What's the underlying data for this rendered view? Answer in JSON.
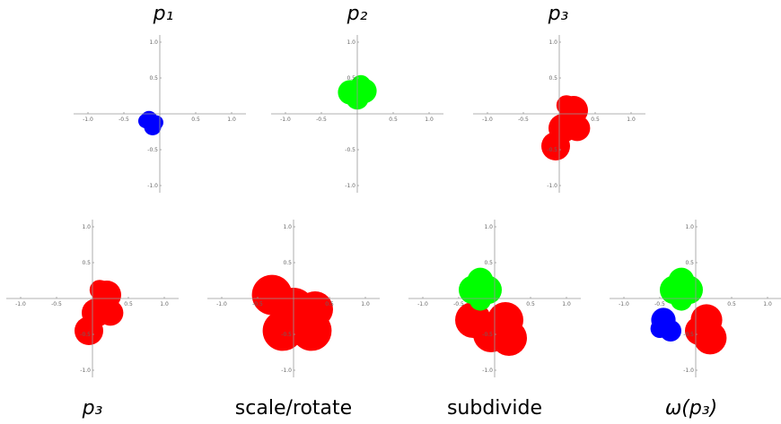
{
  "panels": [
    {
      "label": "p₁"
    },
    {
      "label": "p₂"
    },
    {
      "label": "p₃"
    },
    {
      "label": "p₃"
    },
    {
      "label": "scale/rotate"
    },
    {
      "label": "subdivide"
    },
    {
      "label": "ω(p₃)"
    }
  ],
  "tick_labels": {
    "x": [
      "-1.0",
      "-0.5",
      "0.5",
      "1.0"
    ],
    "y": [
      "1.0",
      "0.5",
      "-0.5",
      "-1.0"
    ]
  }
}
